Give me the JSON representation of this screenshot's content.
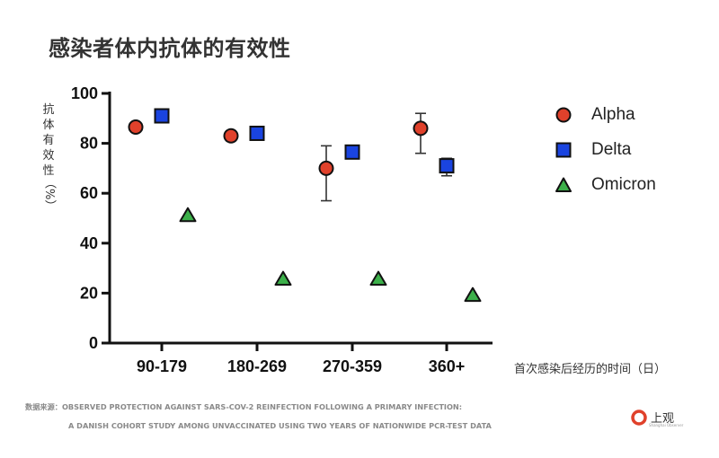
{
  "title": "感染者体内抗体的有效性",
  "source": {
    "line1": "数据来源：OBSERVED PROTECTION AGAINST SARS-COV-2 REINFECTION FOLLOWING A PRIMARY INFECTION:",
    "line2": "A DANISH COHORT STUDY AMONG UNVACCINATED USING TWO YEARS OF NATIONWIDE PCR-TEST DATA"
  },
  "logo": {
    "text": "上观",
    "sub": "Shanghai Observer"
  },
  "chart_data": {
    "type": "scatter",
    "categories": [
      "90-179",
      "180-269",
      "270-359",
      "360+"
    ],
    "ylabel": "抗体有效性",
    "ylabel_unit": "（%）",
    "xlabel": "首次感染后经历的时间（日）",
    "ylim": [
      0,
      100
    ],
    "yticks": [
      0,
      20,
      40,
      60,
      80,
      100
    ],
    "grid": false,
    "legend_position": "right",
    "series": [
      {
        "name": "Alpha",
        "marker": "circle",
        "color": "#e0412b",
        "values": [
          86.5,
          83,
          70,
          86
        ],
        "error_low": [
          null,
          81,
          57,
          76
        ],
        "error_high": [
          null,
          85,
          79,
          92
        ]
      },
      {
        "name": "Delta",
        "marker": "square",
        "color": "#1a44e0",
        "values": [
          91,
          84,
          76.5,
          71
        ],
        "error_low": [
          null,
          null,
          null,
          67
        ],
        "error_high": [
          null,
          null,
          null,
          74
        ]
      },
      {
        "name": "Omicron",
        "marker": "triangle",
        "color": "#3cb04a",
        "values": [
          51,
          25.5,
          25.5,
          19
        ],
        "error_low": [
          null,
          null,
          null,
          null
        ],
        "error_high": [
          null,
          null,
          null,
          null
        ]
      }
    ]
  }
}
